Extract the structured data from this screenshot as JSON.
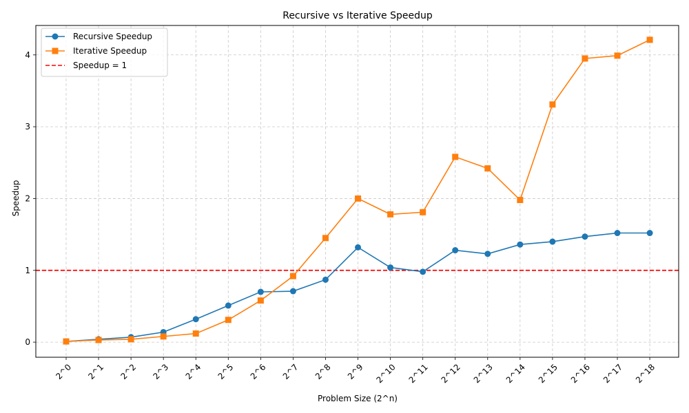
{
  "chart_data": {
    "type": "line",
    "title": "Recursive vs Iterative Speedup",
    "xlabel": "Problem Size (2^n)",
    "ylabel": "Speedup",
    "categories": [
      "2^0",
      "2^1",
      "2^2",
      "2^3",
      "2^4",
      "2^5",
      "2^6",
      "2^7",
      "2^8",
      "2^9",
      "2^10",
      "2^11",
      "2^12",
      "2^13",
      "2^14",
      "2^15",
      "2^16",
      "2^17",
      "2^18"
    ],
    "ylim": [
      -0.21,
      4.41
    ],
    "yticks": [
      0,
      1,
      2,
      3,
      4
    ],
    "grid": true,
    "legend_position": "upper-left",
    "series": [
      {
        "name": "Recursive Speedup",
        "color": "#1f77b4",
        "marker": "circle",
        "values": [
          0.01,
          0.04,
          0.07,
          0.14,
          0.32,
          0.51,
          0.7,
          0.71,
          0.87,
          1.32,
          1.04,
          0.98,
          1.28,
          1.23,
          1.36,
          1.4,
          1.47,
          1.52,
          1.52
        ]
      },
      {
        "name": "Iterative Speedup",
        "color": "#ff7f0e",
        "marker": "square",
        "values": [
          0.01,
          0.03,
          0.04,
          0.08,
          0.12,
          0.31,
          0.58,
          0.92,
          1.45,
          2.0,
          1.78,
          1.81,
          2.58,
          2.42,
          1.98,
          3.31,
          3.95,
          3.99,
          4.21
        ]
      }
    ],
    "reference_line": {
      "name": "Speedup = 1",
      "value": 1,
      "color": "#ff0000",
      "style": "dashed"
    }
  }
}
